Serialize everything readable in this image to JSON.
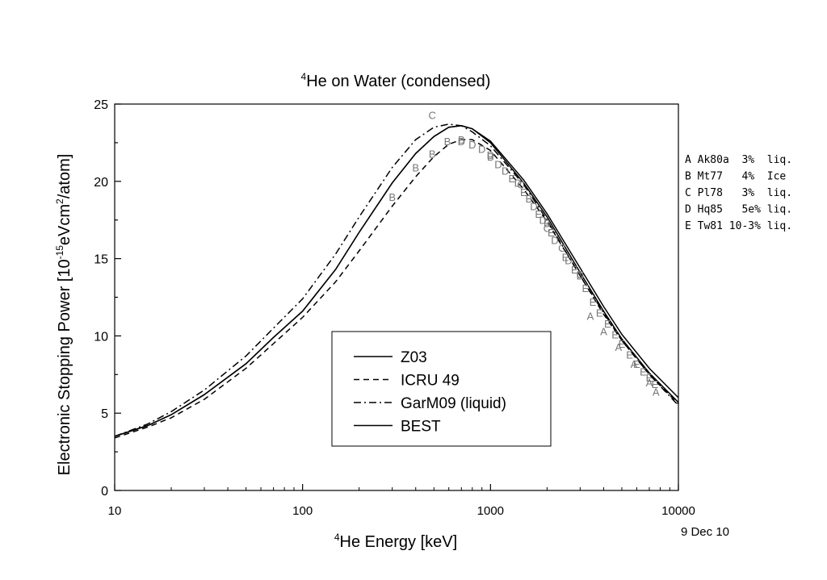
{
  "chart_data": {
    "type": "line",
    "title": "He on Water (condensed)",
    "title_isotope": "4",
    "xlabel": "He Energy [keV]",
    "xlabel_isotope": "4",
    "ylabel_pre": "Electronic Stopping Power [10",
    "ylabel_exp1": "-15",
    "ylabel_mid": "eVcm",
    "ylabel_exp2": "2",
    "ylabel_post": "/atom]",
    "date": "9 Dec 10",
    "x_scale": "log",
    "xlim": [
      10,
      10000
    ],
    "ylim": [
      0,
      25
    ],
    "x_ticks": [
      {
        "value": 10,
        "label": "10"
      },
      {
        "value": 100,
        "label": "100"
      },
      {
        "value": 1000,
        "label": "1000"
      },
      {
        "value": 10000,
        "label": "10000"
      }
    ],
    "y_ticks": [
      {
        "value": 0,
        "label": "0"
      },
      {
        "value": 5,
        "label": "5"
      },
      {
        "value": 10,
        "label": "10"
      },
      {
        "value": 15,
        "label": "15"
      },
      {
        "value": 20,
        "label": "20"
      },
      {
        "value": 25,
        "label": "25"
      }
    ],
    "legend_position": "bottom-center",
    "series": [
      {
        "name": "Z03",
        "style": "solid",
        "points": [
          [
            10,
            3.5
          ],
          [
            15,
            4.2
          ],
          [
            20,
            4.9
          ],
          [
            30,
            6.2
          ],
          [
            50,
            8.2
          ],
          [
            70,
            9.9
          ],
          [
            100,
            11.6
          ],
          [
            150,
            14.3
          ],
          [
            200,
            16.7
          ],
          [
            300,
            19.9
          ],
          [
            400,
            21.8
          ],
          [
            500,
            22.9
          ],
          [
            600,
            23.5
          ],
          [
            700,
            23.6
          ],
          [
            800,
            23.4
          ],
          [
            1000,
            22.5
          ],
          [
            1500,
            19.9
          ],
          [
            2000,
            17.7
          ],
          [
            3000,
            14.1
          ],
          [
            4000,
            11.6
          ],
          [
            5000,
            9.8
          ],
          [
            7000,
            7.6
          ],
          [
            10000,
            5.7
          ]
        ]
      },
      {
        "name": "ICRU 49",
        "style": "dashed",
        "points": [
          [
            10,
            3.4
          ],
          [
            15,
            4.1
          ],
          [
            20,
            4.7
          ],
          [
            30,
            5.9
          ],
          [
            50,
            7.9
          ],
          [
            70,
            9.5
          ],
          [
            100,
            11.2
          ],
          [
            150,
            13.5
          ],
          [
            200,
            15.5
          ],
          [
            300,
            18.4
          ],
          [
            400,
            20.3
          ],
          [
            500,
            21.6
          ],
          [
            600,
            22.4
          ],
          [
            700,
            22.7
          ],
          [
            800,
            22.7
          ],
          [
            1000,
            22.0
          ],
          [
            1500,
            19.5
          ],
          [
            2000,
            17.4
          ],
          [
            3000,
            13.9
          ],
          [
            4000,
            11.4
          ],
          [
            5000,
            9.7
          ],
          [
            7000,
            7.5
          ],
          [
            10000,
            5.6
          ]
        ]
      },
      {
        "name": "GarM09 (liquid)",
        "style": "dashdot",
        "points": [
          [
            10,
            3.5
          ],
          [
            15,
            4.3
          ],
          [
            20,
            5.1
          ],
          [
            30,
            6.5
          ],
          [
            50,
            8.7
          ],
          [
            70,
            10.5
          ],
          [
            100,
            12.4
          ],
          [
            150,
            15.3
          ],
          [
            200,
            17.7
          ],
          [
            300,
            20.9
          ],
          [
            400,
            22.7
          ],
          [
            500,
            23.5
          ],
          [
            600,
            23.7
          ],
          [
            700,
            23.6
          ],
          [
            800,
            23.2
          ],
          [
            1000,
            22.3
          ],
          [
            1500,
            19.8
          ],
          [
            2000,
            17.5
          ],
          [
            3000,
            13.9
          ],
          [
            4000,
            11.5
          ],
          [
            5000,
            9.7
          ],
          [
            7000,
            7.5
          ],
          [
            10000,
            5.5
          ]
        ]
      },
      {
        "name": "BEST",
        "style": "solid",
        "points": [
          [
            10,
            3.5
          ],
          [
            15,
            4.2
          ],
          [
            20,
            4.9
          ],
          [
            30,
            6.2
          ],
          [
            50,
            8.2
          ],
          [
            70,
            9.9
          ],
          [
            100,
            11.6
          ],
          [
            150,
            14.3
          ],
          [
            200,
            16.7
          ],
          [
            300,
            19.9
          ],
          [
            400,
            21.8
          ],
          [
            500,
            22.9
          ],
          [
            600,
            23.5
          ],
          [
            700,
            23.6
          ],
          [
            800,
            23.4
          ],
          [
            1000,
            22.6
          ],
          [
            1500,
            20.1
          ],
          [
            2000,
            17.9
          ],
          [
            3000,
            14.4
          ],
          [
            4000,
            11.9
          ],
          [
            5000,
            10.1
          ],
          [
            7000,
            7.9
          ],
          [
            10000,
            6.0
          ]
        ]
      }
    ],
    "data_sources": [
      {
        "letter": "A",
        "text": "A Ak80a  3%  liq."
      },
      {
        "letter": "B",
        "text": "B Mt77   4%  Ice"
      },
      {
        "letter": "C",
        "text": "C Pl78   3%  liq."
      },
      {
        "letter": "D",
        "text": "D Hq85   5e% liq."
      },
      {
        "letter": "E",
        "text": "E Tw81 10-3% liq."
      }
    ],
    "experimental_points": [
      {
        "letter": "C",
        "x": 490,
        "y": 24.3
      },
      {
        "letter": "C",
        "x": 1450,
        "y": 19.8
      },
      {
        "letter": "C",
        "x": 2000,
        "y": 17.0
      },
      {
        "letter": "C",
        "x": 2400,
        "y": 15.7
      },
      {
        "letter": "C",
        "x": 3000,
        "y": 14.0
      },
      {
        "letter": "B",
        "x": 300,
        "y": 19.0
      },
      {
        "letter": "B",
        "x": 400,
        "y": 20.9
      },
      {
        "letter": "B",
        "x": 490,
        "y": 21.8
      },
      {
        "letter": "B",
        "x": 590,
        "y": 22.6
      },
      {
        "letter": "B",
        "x": 700,
        "y": 22.7
      },
      {
        "letter": "B",
        "x": 1000,
        "y": 21.6
      },
      {
        "letter": "B",
        "x": 1600,
        "y": 18.9
      },
      {
        "letter": "B",
        "x": 2000,
        "y": 17.3
      },
      {
        "letter": "D",
        "x": 700,
        "y": 22.6
      },
      {
        "letter": "D",
        "x": 800,
        "y": 22.4
      },
      {
        "letter": "D",
        "x": 900,
        "y": 22.1
      },
      {
        "letter": "D",
        "x": 1000,
        "y": 21.7
      },
      {
        "letter": "D",
        "x": 1100,
        "y": 21.1
      },
      {
        "letter": "D",
        "x": 1200,
        "y": 20.7
      },
      {
        "letter": "D",
        "x": 1400,
        "y": 19.9
      },
      {
        "letter": "D",
        "x": 1700,
        "y": 18.4
      },
      {
        "letter": "D",
        "x": 1900,
        "y": 17.5
      },
      {
        "letter": "D",
        "x": 2200,
        "y": 16.2
      },
      {
        "letter": "D",
        "x": 2600,
        "y": 14.9
      },
      {
        "letter": "D",
        "x": 3000,
        "y": 13.9
      },
      {
        "letter": "E",
        "x": 1300,
        "y": 20.2
      },
      {
        "letter": "E",
        "x": 1500,
        "y": 19.3
      },
      {
        "letter": "E",
        "x": 1800,
        "y": 17.9
      },
      {
        "letter": "E",
        "x": 2100,
        "y": 16.7
      },
      {
        "letter": "E",
        "x": 2500,
        "y": 15.1
      },
      {
        "letter": "E",
        "x": 2800,
        "y": 14.3
      },
      {
        "letter": "E",
        "x": 3200,
        "y": 13.1
      },
      {
        "letter": "E",
        "x": 3500,
        "y": 12.2
      },
      {
        "letter": "E",
        "x": 3800,
        "y": 11.5
      },
      {
        "letter": "E",
        "x": 4200,
        "y": 10.8
      },
      {
        "letter": "E",
        "x": 4600,
        "y": 10.1
      },
      {
        "letter": "E",
        "x": 5000,
        "y": 9.5
      },
      {
        "letter": "E",
        "x": 5500,
        "y": 8.8
      },
      {
        "letter": "E",
        "x": 6000,
        "y": 8.2
      },
      {
        "letter": "E",
        "x": 6500,
        "y": 7.7
      },
      {
        "letter": "E",
        "x": 7000,
        "y": 7.3
      },
      {
        "letter": "E",
        "x": 7500,
        "y": 6.9
      },
      {
        "letter": "A",
        "x": 3400,
        "y": 11.3
      },
      {
        "letter": "A",
        "x": 4000,
        "y": 10.3
      },
      {
        "letter": "A",
        "x": 4800,
        "y": 9.3
      },
      {
        "letter": "A",
        "x": 5800,
        "y": 8.2
      },
      {
        "letter": "A",
        "x": 7000,
        "y": 7.0
      },
      {
        "letter": "A",
        "x": 7600,
        "y": 6.4
      }
    ]
  }
}
